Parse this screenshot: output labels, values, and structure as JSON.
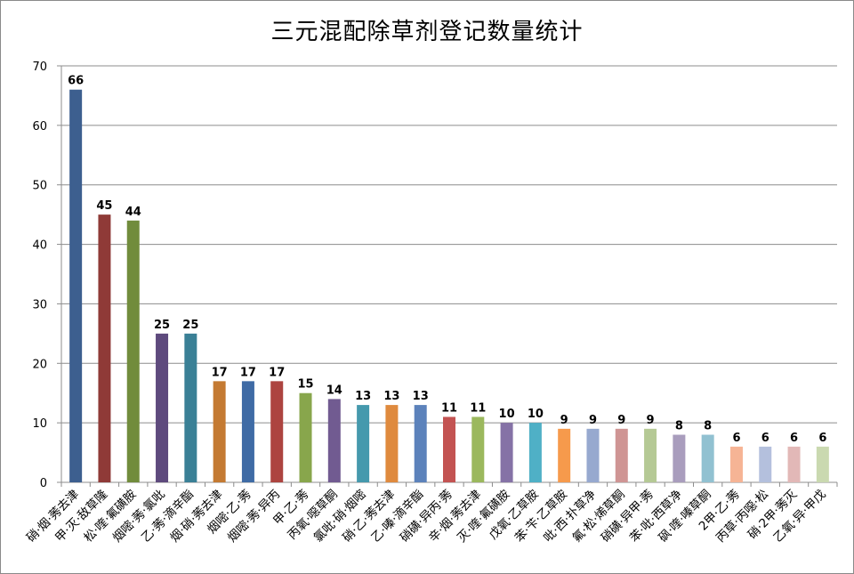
{
  "chart_data": {
    "type": "bar",
    "title": "三元混配除草剂登记数量统计",
    "xlabel": "",
    "ylabel": "",
    "ylim": [
      0,
      70
    ],
    "yticks": [
      0,
      10,
      20,
      30,
      40,
      50,
      60,
      70
    ],
    "grid": true,
    "legend": "none",
    "categories": [
      "硝·烟·莠去津",
      "甲·灭·敌草隆",
      "松·喹·氟磺胺",
      "烟嘧·莠·氯吡",
      "乙·莠·滴辛酯",
      "烟·硝·莠去津",
      "烟嘧·乙·莠",
      "烟嘧·莠·异丙",
      "甲·乙·莠",
      "丙氧·噁草酮",
      "氯吡·硝·烟嘧",
      "硝·乙·莠去津",
      "乙·嗪·滴辛酯",
      "硝磺·异丙·莠",
      "辛·烟·莠去津",
      "灭·喹·氟磺胺",
      "戊氧·乙草胺",
      "苯·苄·乙草胺",
      "吡·西·扑草净",
      "氟·松·烯草酮",
      "硝磺·异甲·莠",
      "苯·吡·西草净",
      "砜·喹·嗪草酮",
      "2甲·乙·莠",
      "丙草·丙噁·松",
      "硝·2甲·莠灭",
      "乙氧·异·甲戊"
    ],
    "values": [
      66,
      45,
      44,
      25,
      25,
      17,
      17,
      17,
      15,
      14,
      13,
      13,
      13,
      11,
      11,
      10,
      10,
      9,
      9,
      9,
      9,
      8,
      8,
      6,
      6,
      6,
      6
    ],
    "colors": [
      "#3d5f8f",
      "#8f3a37",
      "#718c3c",
      "#5e4a7d",
      "#3a8096",
      "#c47a32",
      "#3f6ba5",
      "#ad4440",
      "#88a64c",
      "#715b91",
      "#4599ad",
      "#df8a3e",
      "#5c82bb",
      "#c35352",
      "#9bb85d",
      "#8572a6",
      "#4fb0c6",
      "#f69a4c",
      "#97a9cf",
      "#cf9594",
      "#b5c995",
      "#a99dbd",
      "#91c1d1",
      "#f6b495",
      "#b4c0dd",
      "#e2b8b7",
      "#cad9b0"
    ]
  }
}
